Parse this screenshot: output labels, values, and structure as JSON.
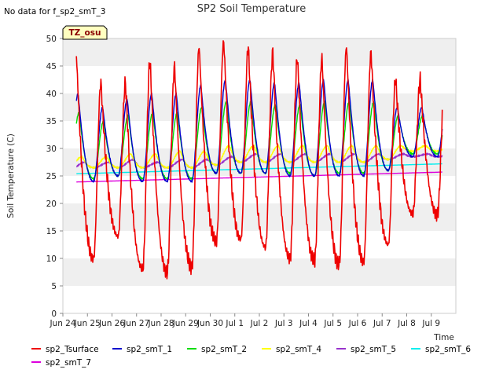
{
  "note": "No data for f_sp2_smT_3",
  "badge": "TZ_osu",
  "colors": {
    "sp2_Tsurface": "#ee0000",
    "sp2_smT_1": "#0000cc",
    "sp2_smT_2": "#00dd00",
    "sp2_smT_4": "#ffff00",
    "sp2_smT_5": "#9933cc",
    "sp2_smT_6": "#00eeee",
    "sp2_smT_7": "#dd00dd",
    "band": "#efefef",
    "badge_bg": "#ffffc0",
    "badge_border": "#000000"
  },
  "chart_data": {
    "type": "line",
    "title": "SP2 Soil Temperature",
    "xlabel": "Time",
    "ylabel": "Soil Temperature (C)",
    "ylim": [
      0,
      50
    ],
    "xlim": [
      0,
      16
    ],
    "x_tick_values": [
      0,
      1,
      2,
      3,
      4,
      5,
      6,
      7,
      8,
      9,
      10,
      11,
      12,
      13,
      14,
      15,
      16
    ],
    "x_tick_labels": [
      "Jun 24",
      "Jun 25",
      "Jun 26",
      "Jun 27",
      "Jun 28",
      "Jun 29",
      "Jun 30",
      "Jul 1",
      "Jul 2",
      "Jul 3",
      "Jul 4",
      "Jul 5",
      "Jul 6",
      "Jul 7",
      "Jul 8",
      "Jul 9"
    ],
    "y_ticks": [
      0,
      5,
      10,
      15,
      20,
      25,
      30,
      35,
      40,
      45,
      50
    ],
    "grid": "horizontal bands",
    "legend_position": "bottom",
    "x_unit": "days since Jun 24",
    "data_range": [
      0.55,
      15.45
    ],
    "series": [
      {
        "name": "sp2_Tsurface",
        "kind": "diurnal",
        "mins": [
          9.5,
          10,
          14,
          8,
          7.5,
          8.5,
          13,
          13.5,
          12,
          10,
          9.5,
          9,
          9.5,
          12.5,
          18
        ],
        "maxs": [
          47,
          42,
          42,
          46,
          45,
          48.5,
          49.5,
          48.5,
          47.5,
          46.5,
          46.5,
          48.5,
          47.5,
          42.5
        ],
        "peak_phase": 0.55
      },
      {
        "name": "sp2_smT_1",
        "kind": "diurnal",
        "mins": [
          24,
          24,
          25,
          24,
          24,
          24,
          25.5,
          25.5,
          25.5,
          25,
          25,
          25,
          25,
          26,
          28.5
        ],
        "maxs": [
          40,
          37.5,
          39,
          40,
          40,
          41.5,
          42.5,
          42.5,
          42,
          42,
          42.5,
          42.5,
          42.5,
          37.5
        ],
        "peak_phase": 0.62
      },
      {
        "name": "sp2_smT_2",
        "kind": "diurnal",
        "mins": [
          24.5,
          24.5,
          25,
          24.5,
          24.5,
          24.5,
          25.5,
          25.5,
          25.5,
          25.5,
          25,
          25.5,
          25.5,
          26,
          29
        ],
        "maxs": [
          36.5,
          35,
          36,
          36.5,
          36.5,
          37.5,
          38.5,
          38.5,
          38,
          38,
          38.5,
          38.5,
          38.5,
          36
        ],
        "peak_phase": 0.66
      },
      {
        "name": "sp2_smT_4",
        "kind": "diurnal",
        "mins": [
          26.5,
          26.5,
          26.5,
          26.5,
          26.5,
          26.5,
          27,
          27.5,
          27.5,
          27.5,
          27.5,
          27.5,
          27.5,
          28,
          29.5
        ],
        "maxs": [
          28.5,
          28.5,
          29,
          29,
          29.5,
          29.5,
          30.5,
          30.5,
          30.5,
          30.5,
          30.5,
          30.5,
          30.5,
          30.5
        ],
        "peak_phase": 0.78
      },
      {
        "name": "sp2_smT_5",
        "kind": "diurnal",
        "mins": [
          26,
          26.5,
          26.5,
          26.5,
          26.5,
          26.5,
          27,
          27.5,
          27.5,
          27.5,
          27.5,
          27.5,
          27.5,
          28,
          28.5
        ],
        "maxs": [
          27.5,
          27.5,
          28,
          27.5,
          28,
          28,
          28.5,
          29,
          29,
          29,
          29,
          29,
          29,
          29
        ],
        "peak_phase": 0.9
      },
      {
        "name": "sp2_smT_6",
        "kind": "linear",
        "start": 25.4,
        "end": 27.2
      },
      {
        "name": "sp2_smT_7",
        "kind": "linear",
        "start": 23.9,
        "end": 25.7
      }
    ]
  },
  "legend": {
    "items": [
      "sp2_Tsurface",
      "sp2_smT_1",
      "sp2_smT_2",
      "sp2_smT_4",
      "sp2_smT_5",
      "sp2_smT_6",
      "sp2_smT_7"
    ]
  }
}
